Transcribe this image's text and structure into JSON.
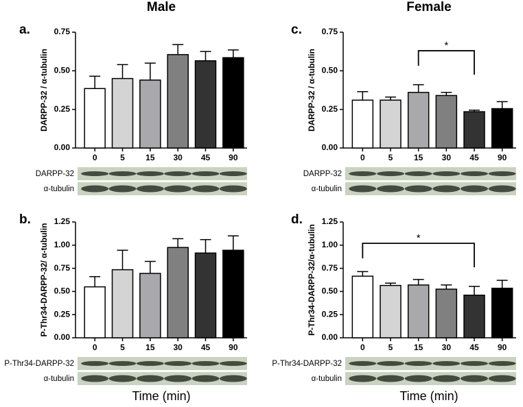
{
  "columns": [
    {
      "title": "Male",
      "xlabel": "Time (min)"
    },
    {
      "title": "Female",
      "xlabel": "Time (min)"
    }
  ],
  "chart_data": [
    {
      "type": "bar",
      "panel": "a.",
      "ylabel": "DARPP-32 / α-tubulin",
      "categories": [
        "0",
        "5",
        "15",
        "30",
        "45",
        "90"
      ],
      "values": [
        0.385,
        0.45,
        0.44,
        0.605,
        0.565,
        0.585
      ],
      "errors": [
        0.08,
        0.09,
        0.11,
        0.065,
        0.06,
        0.05
      ],
      "colors": [
        "#ffffff",
        "#d4d4d4",
        "#a9a9ad",
        "#808080",
        "#333333",
        "#000000"
      ],
      "ylim": [
        0,
        0.75
      ],
      "yticks": [
        {
          "value": 0,
          "label": "0.00"
        },
        {
          "value": 0.25,
          "label": "0.25"
        },
        {
          "value": 0.5,
          "label": "0.50"
        },
        {
          "value": 0.75,
          "label": "0.75"
        }
      ],
      "blot_labels": [
        "DARPP-32",
        "α-tubulin"
      ]
    },
    {
      "type": "bar",
      "panel": "b.",
      "ylabel": "P-Thr34-DARPP-32/ α-tubulin",
      "categories": [
        "0",
        "5",
        "15",
        "30",
        "45",
        "90"
      ],
      "values": [
        0.55,
        0.735,
        0.695,
        0.975,
        0.915,
        0.945
      ],
      "errors": [
        0.11,
        0.21,
        0.13,
        0.095,
        0.145,
        0.155
      ],
      "colors": [
        "#ffffff",
        "#d4d4d4",
        "#a9a9ad",
        "#808080",
        "#333333",
        "#000000"
      ],
      "ylim": [
        0,
        1.25
      ],
      "yticks": [
        {
          "value": 0,
          "label": "0.00"
        },
        {
          "value": 0.25,
          "label": "0.25"
        },
        {
          "value": 0.5,
          "label": "0.50"
        },
        {
          "value": 0.75,
          "label": "0.75"
        },
        {
          "value": 1,
          "label": "1.00"
        },
        {
          "value": 1.25,
          "label": "1.25"
        }
      ],
      "blot_labels": [
        "P-Thr34-DARPP-32",
        "α-tubulin"
      ]
    },
    {
      "type": "bar",
      "panel": "c.",
      "ylabel": "DARPP-32 / α-tubulin",
      "categories": [
        "0",
        "5",
        "15",
        "30",
        "45",
        "90"
      ],
      "values": [
        0.31,
        0.31,
        0.36,
        0.34,
        0.235,
        0.255
      ],
      "errors": [
        0.055,
        0.02,
        0.05,
        0.02,
        0.01,
        0.045
      ],
      "colors": [
        "#ffffff",
        "#d4d4d4",
        "#a9a9ad",
        "#808080",
        "#333333",
        "#000000"
      ],
      "ylim": [
        0,
        0.75
      ],
      "yticks": [
        {
          "value": 0,
          "label": "0.00"
        },
        {
          "value": 0.25,
          "label": "0.25"
        },
        {
          "value": 0.5,
          "label": "0.50"
        },
        {
          "value": 0.75,
          "label": "0.75"
        }
      ],
      "significance": {
        "label": "*",
        "x": [
          "15",
          "45"
        ],
        "y": 0.63
      },
      "blot_labels": [
        "DARPP-32",
        "α-tubulin"
      ]
    },
    {
      "type": "bar",
      "panel": "d.",
      "ylabel": "P-Thr34-DARPP-32/α-tubulin",
      "categories": [
        "0",
        "5",
        "15",
        "30",
        "45",
        "90"
      ],
      "values": [
        0.665,
        0.565,
        0.57,
        0.525,
        0.46,
        0.535
      ],
      "errors": [
        0.05,
        0.025,
        0.06,
        0.045,
        0.095,
        0.085
      ],
      "colors": [
        "#ffffff",
        "#d4d4d4",
        "#a9a9ad",
        "#808080",
        "#333333",
        "#000000"
      ],
      "ylim": [
        0,
        1.25
      ],
      "yticks": [
        {
          "value": 0,
          "label": "0.00"
        },
        {
          "value": 0.25,
          "label": "0.25"
        },
        {
          "value": 0.5,
          "label": "0.50"
        },
        {
          "value": 0.75,
          "label": "0.75"
        },
        {
          "value": 1,
          "label": "1.00"
        },
        {
          "value": 1.25,
          "label": "1.25"
        }
      ],
      "significance": {
        "label": "*",
        "x": [
          "0",
          "45"
        ],
        "y": 1.02
      },
      "blot_labels": [
        "P-Thr34-DARPP-32",
        "α-tubulin"
      ]
    }
  ]
}
